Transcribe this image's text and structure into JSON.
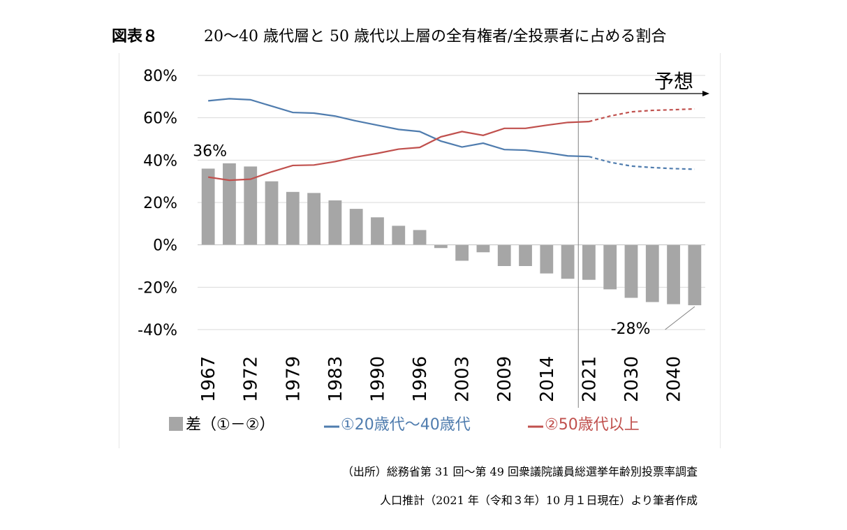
{
  "header": {
    "figure_label": "図表８",
    "title": "20～40 歳代層と 50 歳代以上層の全有権者/全投票者に占める割合"
  },
  "source": {
    "line1": "（出所）総務省第 31 回～第 49 回衆議院議員総選挙年齢別投票率調査",
    "line2": "人口推計（2021 年（令和３年）10 月１日現在）より筆者作成"
  },
  "chart_data": {
    "type": "bar+line",
    "title": "",
    "xlabel": "",
    "ylabel": "",
    "ylim": [
      -0.4,
      0.8
    ],
    "yticks": [
      {
        "value": 0.8,
        "label": "80%"
      },
      {
        "value": 0.6,
        "label": "60%"
      },
      {
        "value": 0.4,
        "label": "40%"
      },
      {
        "value": 0.2,
        "label": "20%"
      },
      {
        "value": 0.0,
        "label": "0%"
      },
      {
        "value": -0.2,
        "label": "-20%"
      },
      {
        "value": -0.4,
        "label": "-40%"
      }
    ],
    "xtick_labels": [
      {
        "index": 0,
        "label": "1967"
      },
      {
        "index": 2,
        "label": "1972"
      },
      {
        "index": 4,
        "label": "1979"
      },
      {
        "index": 6,
        "label": "1983"
      },
      {
        "index": 8,
        "label": "1990"
      },
      {
        "index": 10,
        "label": "1996"
      },
      {
        "index": 12,
        "label": "2003"
      },
      {
        "index": 14,
        "label": "2009"
      },
      {
        "index": 16,
        "label": "2014"
      },
      {
        "index": 18,
        "label": "2021"
      },
      {
        "index": 20,
        "label": "2030"
      },
      {
        "index": 22,
        "label": "2040"
      }
    ],
    "n_points": 24,
    "forecast_start_index": 18,
    "forecast_label": "予想",
    "series": [
      {
        "name": "差（①－②）",
        "kind": "bar",
        "color": "#a6a6a6",
        "values": [
          0.36,
          0.385,
          0.37,
          0.3,
          0.25,
          0.245,
          0.21,
          0.17,
          0.13,
          0.09,
          0.07,
          -0.015,
          -0.075,
          -0.035,
          -0.1,
          -0.1,
          -0.135,
          -0.16,
          -0.165,
          -0.21,
          -0.25,
          -0.27,
          -0.28,
          -0.285
        ]
      },
      {
        "name": "①20歳代～40歳代",
        "kind": "line",
        "color": "#4f7cae",
        "values": [
          0.68,
          0.69,
          0.685,
          0.655,
          0.625,
          0.622,
          0.608,
          0.585,
          0.565,
          0.545,
          0.535,
          0.49,
          0.462,
          0.48,
          0.45,
          0.447,
          0.435,
          0.42,
          0.417,
          0.39,
          0.372,
          0.365,
          0.36,
          0.357
        ]
      },
      {
        "name": "②50歳代以上",
        "kind": "line",
        "color": "#c0504d",
        "values": [
          0.32,
          0.305,
          0.31,
          0.345,
          0.375,
          0.377,
          0.393,
          0.415,
          0.432,
          0.452,
          0.46,
          0.51,
          0.535,
          0.517,
          0.55,
          0.55,
          0.565,
          0.578,
          0.582,
          0.608,
          0.628,
          0.635,
          0.638,
          0.642
        ]
      }
    ],
    "annotations": [
      {
        "text": "36%",
        "index": 0
      },
      {
        "text": "-28%",
        "index": 22
      }
    ],
    "grid": true,
    "legend_position": "bottom"
  }
}
